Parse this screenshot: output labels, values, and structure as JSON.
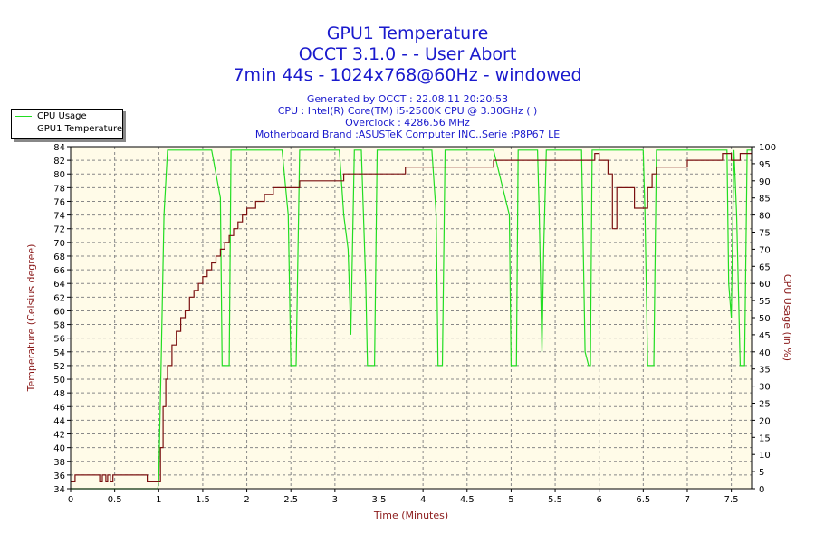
{
  "header": {
    "title": "GPU1 Temperature",
    "subtitle1": "OCCT 3.1.0 -  - User Abort",
    "subtitle2": "7min 44s - 1024x768@60Hz - windowed",
    "generated": "Generated by OCCT : 22.08.11 20:20:53",
    "cpu": "CPU : Intel(R) Core(TM) i5-2500K CPU @ 3.30GHz (  )",
    "overclock": "Overclock : 4286.56 MHz",
    "motherboard": "Motherboard Brand :ASUSTeK Computer INC.,Serie :P8P67 LE"
  },
  "legend": {
    "items": [
      {
        "label": "CPU Usage",
        "color": "#22dd22"
      },
      {
        "label": "GPU1 Temperature",
        "color": "#7a1010"
      }
    ]
  },
  "colors": {
    "plot_bg": "#fffbe8",
    "grid": "#888888",
    "cpu_line": "#22dd22",
    "temp_line": "#7a1010",
    "text_blue": "#1a1acd",
    "axis_label": "#8b1a1a"
  },
  "chart_data": {
    "type": "line",
    "xlabel": "Time (Minutes)",
    "ylabel_left": "Temperature (Celsius degree)",
    "ylabel_right": "CPU Usage (in %)",
    "xlim": [
      0,
      7.73
    ],
    "ylim_left": [
      34,
      84
    ],
    "ylim_right": [
      0,
      100
    ],
    "x_ticks": [
      "0",
      "0.5",
      "1",
      "1.5",
      "2",
      "2.5",
      "3",
      "3.5",
      "4",
      "4.5",
      "5",
      "5.5",
      "6",
      "6.5",
      "7",
      "7.5"
    ],
    "y_left_ticks": [
      "34",
      "36",
      "38",
      "40",
      "42",
      "44",
      "46",
      "48",
      "50",
      "52",
      "54",
      "56",
      "58",
      "60",
      "62",
      "64",
      "66",
      "68",
      "70",
      "72",
      "74",
      "76",
      "78",
      "80",
      "82",
      "84"
    ],
    "y_right_ticks": [
      "0",
      "5",
      "10",
      "15",
      "20",
      "25",
      "30",
      "35",
      "40",
      "45",
      "50",
      "55",
      "60",
      "65",
      "70",
      "75",
      "80",
      "85",
      "90",
      "95",
      "100"
    ],
    "grid": true,
    "legend_position": "top-left",
    "series": [
      {
        "name": "GPU1 Temperature",
        "axis": "left",
        "x": [
          0,
          0.05,
          0.32,
          0.33,
          0.36,
          0.4,
          0.42,
          0.45,
          0.48,
          0.5,
          0.55,
          0.85,
          0.87,
          1.0,
          1.02,
          1.05,
          1.08,
          1.1,
          1.15,
          1.2,
          1.25,
          1.3,
          1.35,
          1.4,
          1.45,
          1.5,
          1.55,
          1.6,
          1.65,
          1.7,
          1.75,
          1.8,
          1.85,
          1.9,
          1.95,
          2.0,
          2.1,
          2.2,
          2.3,
          2.4,
          2.5,
          2.6,
          2.8,
          3.0,
          3.1,
          3.2,
          3.3,
          3.4,
          3.5,
          3.6,
          3.8,
          4.0,
          4.2,
          4.4,
          4.5,
          4.7,
          4.8,
          5.0,
          5.2,
          5.4,
          5.5,
          5.7,
          5.8,
          5.95,
          6.0,
          6.1,
          6.15,
          6.2,
          6.3,
          6.4,
          6.45,
          6.55,
          6.6,
          6.65,
          6.7,
          6.8,
          7.0,
          7.2,
          7.3,
          7.4,
          7.5,
          7.6,
          7.73
        ],
        "y": [
          35,
          36,
          36,
          35,
          36,
          35,
          36,
          35,
          36,
          36,
          36,
          36,
          35,
          35,
          40,
          46,
          50,
          52,
          55,
          57,
          59,
          60,
          62,
          63,
          64,
          65,
          66,
          67,
          68,
          69,
          70,
          71,
          72,
          73,
          74,
          75,
          76,
          77,
          78,
          78,
          78,
          79,
          79,
          79,
          80,
          80,
          80,
          80,
          80,
          80,
          81,
          81,
          81,
          81,
          81,
          81,
          82,
          82,
          82,
          82,
          82,
          82,
          82,
          83,
          82,
          80,
          72,
          78,
          78,
          75,
          75,
          78,
          80,
          81,
          81,
          81,
          82,
          82,
          82,
          83,
          82,
          83,
          83
        ]
      },
      {
        "name": "CPU Usage",
        "axis": "right",
        "x": [
          0,
          0.99,
          1.0,
          1.03,
          1.06,
          1.1,
          1.12,
          1.3,
          1.5,
          1.6,
          1.7,
          1.72,
          1.75,
          1.78,
          1.8,
          1.82,
          1.9,
          2.0,
          2.2,
          2.4,
          2.47,
          2.5,
          2.53,
          2.56,
          2.6,
          2.8,
          3.0,
          3.05,
          3.1,
          3.15,
          3.18,
          3.22,
          3.3,
          3.35,
          3.37,
          3.4,
          3.45,
          3.48,
          3.52,
          3.6,
          3.8,
          4.0,
          4.1,
          4.15,
          4.17,
          4.2,
          4.22,
          4.25,
          4.4,
          4.6,
          4.8,
          4.98,
          5.0,
          5.03,
          5.06,
          5.08,
          5.12,
          5.2,
          5.3,
          5.32,
          5.35,
          5.37,
          5.4,
          5.5,
          5.7,
          5.8,
          5.84,
          5.88,
          5.9,
          5.92,
          6.0,
          6.2,
          6.4,
          6.5,
          6.52,
          6.55,
          6.58,
          6.62,
          6.65,
          6.7,
          6.9,
          7.1,
          7.3,
          7.45,
          7.47,
          7.5,
          7.53,
          7.56,
          7.6,
          7.62,
          7.65,
          7.68,
          7.73
        ],
        "y": [
          0,
          0,
          3,
          40,
          80,
          99,
          99,
          99,
          99,
          99,
          85,
          36,
          36,
          36,
          36,
          99,
          99,
          99,
          99,
          99,
          80,
          36,
          36,
          36,
          99,
          99,
          99,
          99,
          80,
          70,
          45,
          99,
          99,
          60,
          36,
          36,
          36,
          99,
          99,
          99,
          99,
          99,
          99,
          80,
          36,
          36,
          36,
          99,
          99,
          99,
          99,
          80,
          36,
          36,
          36,
          99,
          99,
          99,
          99,
          80,
          40,
          70,
          99,
          99,
          99,
          99,
          40,
          36,
          36,
          99,
          99,
          99,
          99,
          99,
          80,
          36,
          36,
          36,
          99,
          99,
          99,
          99,
          99,
          99,
          60,
          50,
          99,
          80,
          36,
          36,
          36,
          99,
          99
        ]
      }
    ]
  }
}
